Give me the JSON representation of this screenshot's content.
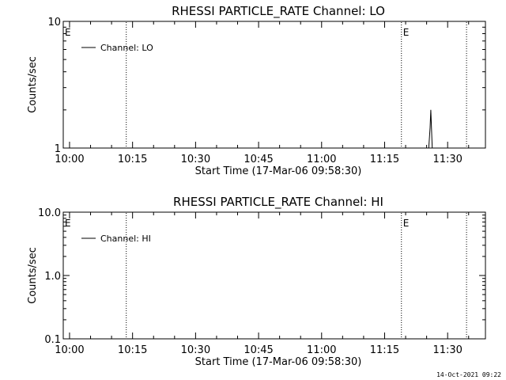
{
  "footer": {
    "timestamp": "14-Oct-2021 09:22"
  },
  "chart_data": [
    {
      "type": "line",
      "title": "RHESSI PARTICLE_RATE Channel: LO",
      "xlabel": "Start Time (17-Mar-06 09:58:30)",
      "ylabel": "Counts/sec",
      "yscale": "log",
      "ylim": [
        1,
        10
      ],
      "ytick_values": [
        1,
        10
      ],
      "ytick_labels": [
        "1",
        "10"
      ],
      "xlim": [
        "09:58:30",
        "11:39:00"
      ],
      "xtick_labels": [
        "10:00",
        "10:15",
        "10:30",
        "10:45",
        "11:00",
        "11:15",
        "11:30"
      ],
      "xtick_times": [
        "10:00",
        "10:15",
        "10:30",
        "10:45",
        "11:00",
        "11:15",
        "11:30"
      ],
      "vlines": [
        "10:13:30",
        "11:19:00",
        "11:34:30"
      ],
      "markers": [
        {
          "label": "E",
          "time": "09:58:30"
        },
        {
          "label": "E",
          "time": "11:19:00"
        }
      ],
      "legend": {
        "position": "top-left",
        "entries": [
          "Channel: LO"
        ]
      },
      "series": [
        {
          "name": "Channel: LO",
          "x": [
            "11:25:30",
            "11:25:50",
            "11:26:00",
            "11:26:20"
          ],
          "y": [
            1,
            1.45,
            2.0,
            1
          ]
        }
      ]
    },
    {
      "type": "line",
      "title": "RHESSI PARTICLE_RATE Channel: HI",
      "xlabel": "Start Time (17-Mar-06 09:58:30)",
      "ylabel": "Counts/sec",
      "yscale": "log",
      "ylim": [
        0.1,
        10
      ],
      "ytick_values": [
        0.1,
        1,
        10
      ],
      "ytick_labels": [
        "0.1",
        "1.0",
        "10.0"
      ],
      "xlim": [
        "09:58:30",
        "11:39:00"
      ],
      "xtick_labels": [
        "10:00",
        "10:15",
        "10:30",
        "10:45",
        "11:00",
        "11:15",
        "11:30"
      ],
      "xtick_times": [
        "10:00",
        "10:15",
        "10:30",
        "10:45",
        "11:00",
        "11:15",
        "11:30"
      ],
      "vlines": [
        "10:13:30",
        "11:19:00",
        "11:34:30"
      ],
      "markers": [
        {
          "label": "E",
          "time": "09:58:30"
        },
        {
          "label": "E",
          "time": "11:19:00"
        }
      ],
      "legend": {
        "position": "top-left",
        "entries": [
          "Channel: HI"
        ]
      },
      "series": [
        {
          "name": "Channel: HI",
          "x": [],
          "y": []
        }
      ]
    }
  ]
}
